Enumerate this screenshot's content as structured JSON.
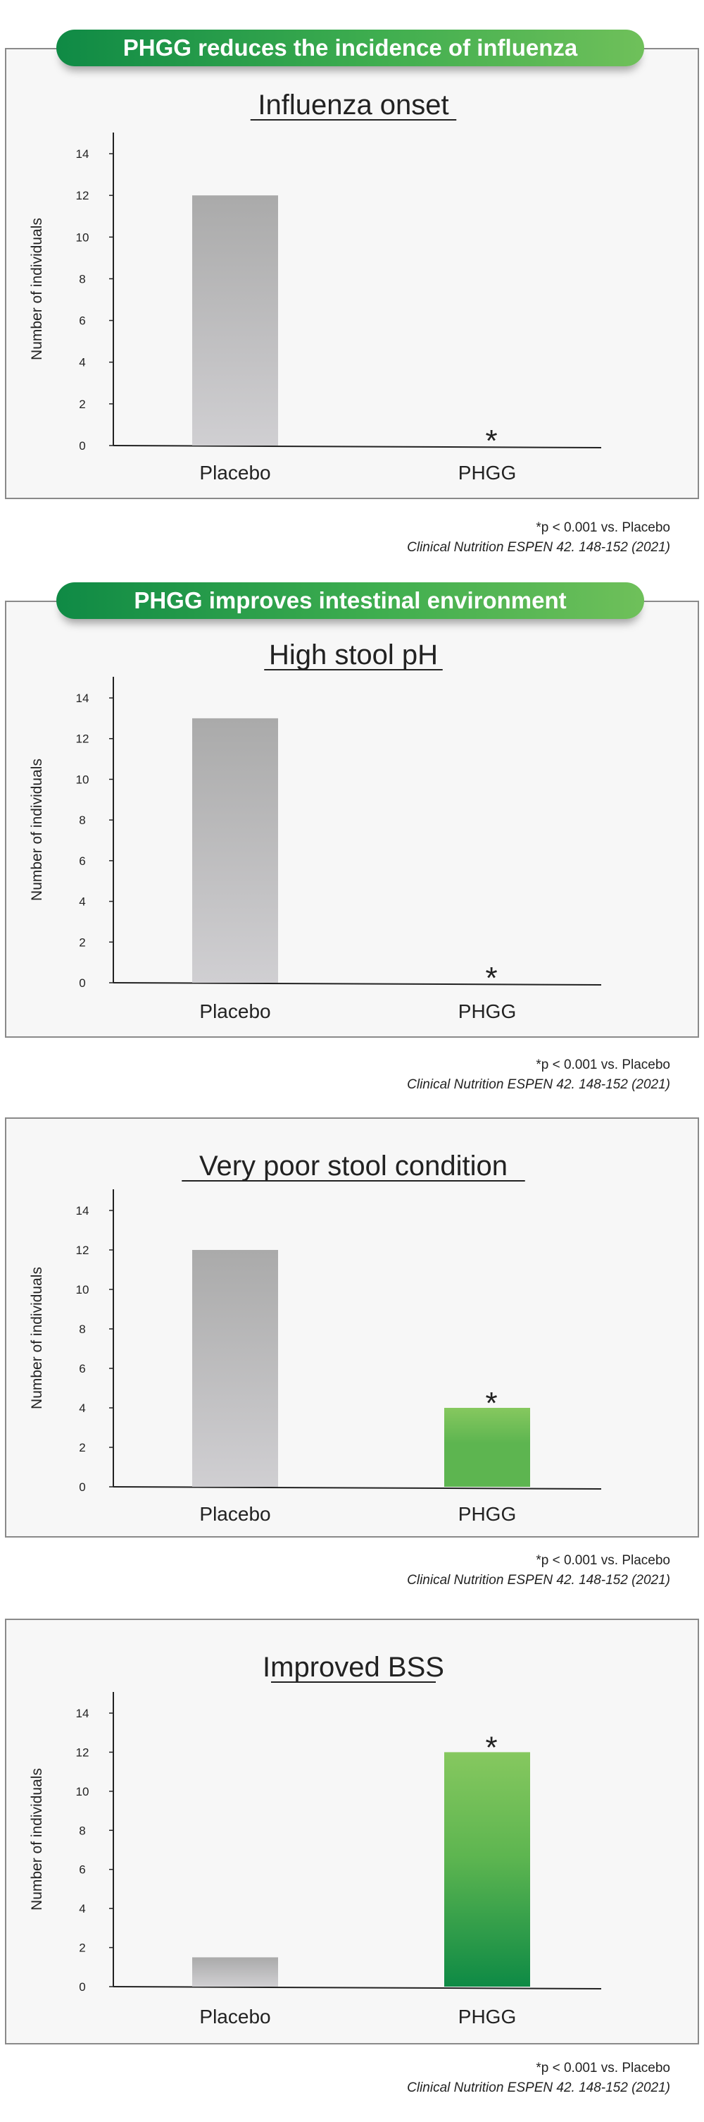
{
  "banners": {
    "influenza": "PHGG reduces the incidence of influenza",
    "intestinal": "PHGG improves intestinal environment"
  },
  "footnote": {
    "pvalue": "*p < 0.001 vs. Placebo",
    "citation": "Clinical Nutrition ESPEN 42. 148-152 (2021)"
  },
  "colors": {
    "placebo_top": "#aaaaaa",
    "placebo_bottom": "#d0cfd2",
    "phgg_light": "#86c85f",
    "phgg_mid": "#5db550",
    "phgg_dark": "#0e8a45",
    "banner_dark": "#0f8a45",
    "banner_light": "#6fc05a"
  },
  "chart_data": [
    {
      "type": "bar",
      "title": "Influenza onset",
      "ylabel": "Number of individuals",
      "categories": [
        "Placebo",
        "PHGG"
      ],
      "values": [
        12,
        0
      ],
      "ylim": [
        0,
        14
      ],
      "yticks": [
        "0",
        "2",
        "4",
        "6",
        "8",
        "10",
        "12",
        "14"
      ],
      "significance": "*",
      "significant_category": "PHGG"
    },
    {
      "type": "bar",
      "title": "High stool pH",
      "ylabel": "Number of individuals",
      "categories": [
        "Placebo",
        "PHGG"
      ],
      "values": [
        13,
        0
      ],
      "ylim": [
        0,
        14
      ],
      "yticks": [
        "0",
        "2",
        "4",
        "6",
        "8",
        "10",
        "12",
        "14"
      ],
      "significance": "*",
      "significant_category": "PHGG"
    },
    {
      "type": "bar",
      "title": "Very poor stool condition",
      "ylabel": "Number of individuals",
      "categories": [
        "Placebo",
        "PHGG"
      ],
      "values": [
        12,
        4
      ],
      "ylim": [
        0,
        14
      ],
      "yticks": [
        "0",
        "2",
        "4",
        "6",
        "8",
        "10",
        "12",
        "14"
      ],
      "significance": "*",
      "significant_category": "PHGG"
    },
    {
      "type": "bar",
      "title": "Improved BSS",
      "ylabel": "Number of individuals",
      "categories": [
        "Placebo",
        "PHGG"
      ],
      "values": [
        1.5,
        12
      ],
      "ylim": [
        0,
        14
      ],
      "yticks": [
        "0",
        "2",
        "4",
        "6",
        "8",
        "10",
        "12",
        "14"
      ],
      "significance": "*",
      "significant_category": "PHGG"
    }
  ]
}
